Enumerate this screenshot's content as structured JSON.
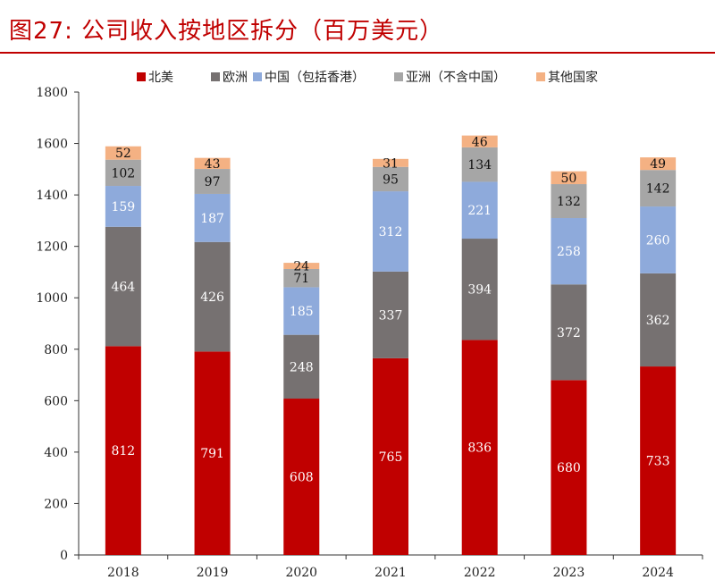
{
  "figure": {
    "title": "图27:   公司收入按地区拆分（百万美元）"
  },
  "colors": {
    "title": "#c00000",
    "north_america": "#c00000",
    "europe": "#767171",
    "china": "#8eaadb",
    "asia": "#a6a6a6",
    "other": "#f4b183"
  },
  "chart_data": {
    "type": "bar",
    "stacked": true,
    "title": "公司收入按地区拆分（百万美元）",
    "xlabel": "",
    "ylabel": "",
    "ylim": [
      0,
      1800
    ],
    "yticks": [
      0,
      200,
      400,
      600,
      800,
      1000,
      1200,
      1400,
      1600,
      1800
    ],
    "legend_position": "top",
    "categories": [
      "2018",
      "2019",
      "2020",
      "2021",
      "2022",
      "2023",
      "2024"
    ],
    "series": [
      {
        "name": "北美",
        "color": "#c00000",
        "label_color": "#ffffff",
        "values": [
          812,
          791,
          608,
          765,
          836,
          680,
          733
        ]
      },
      {
        "name": "欧洲",
        "color": "#767171",
        "label_color": "#ffffff",
        "values": [
          464,
          426,
          248,
          337,
          394,
          372,
          362
        ]
      },
      {
        "name": "中国（包括香港）",
        "color": "#8eaadb",
        "label_color": "#ffffff",
        "values": [
          159,
          187,
          185,
          312,
          221,
          258,
          260
        ]
      },
      {
        "name": "亚洲（不含中国）",
        "color": "#a6a6a6",
        "label_color": "#111111",
        "values": [
          102,
          97,
          71,
          95,
          134,
          132,
          142
        ]
      },
      {
        "name": "其他国家",
        "color": "#f4b183",
        "label_color": "#111111",
        "values": [
          52,
          43,
          24,
          31,
          46,
          50,
          49
        ]
      }
    ]
  }
}
